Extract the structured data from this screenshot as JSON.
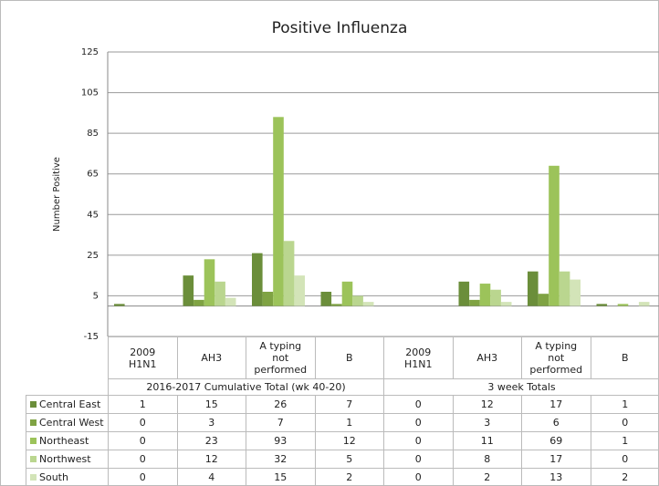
{
  "chart_data": {
    "type": "bar",
    "title": "Positive Influenza",
    "y_label": "Number Positive",
    "groups": [
      {
        "name": "2016-2017 Cumulative Total (wk 40-20)",
        "categories": [
          "2009 H1N1",
          "AH3",
          "A typing not performed",
          "B"
        ]
      },
      {
        "name": "3 week Totals",
        "categories": [
          "2009 H1N1",
          "AH3",
          "A typing not performed",
          "B"
        ]
      }
    ],
    "series": [
      {
        "name": "Central East",
        "color": "#6b8e3a",
        "values": [
          1,
          15,
          26,
          7,
          0,
          12,
          17,
          1
        ]
      },
      {
        "name": "Central West",
        "color": "#7fa343",
        "values": [
          0,
          3,
          7,
          1,
          0,
          3,
          6,
          0
        ]
      },
      {
        "name": "Northeast",
        "color": "#9cc35a",
        "values": [
          0,
          23,
          93,
          12,
          0,
          11,
          69,
          1
        ]
      },
      {
        "name": "Northwest",
        "color": "#bad68f",
        "values": [
          0,
          12,
          32,
          5,
          0,
          8,
          17,
          0
        ]
      },
      {
        "name": "South",
        "color": "#d3e4b8",
        "values": [
          0,
          4,
          15,
          2,
          0,
          2,
          13,
          2
        ]
      }
    ],
    "ylim": [
      -15,
      125
    ],
    "yticks": [
      -15,
      5,
      25,
      45,
      65,
      85,
      105,
      125
    ],
    "grid": true
  }
}
